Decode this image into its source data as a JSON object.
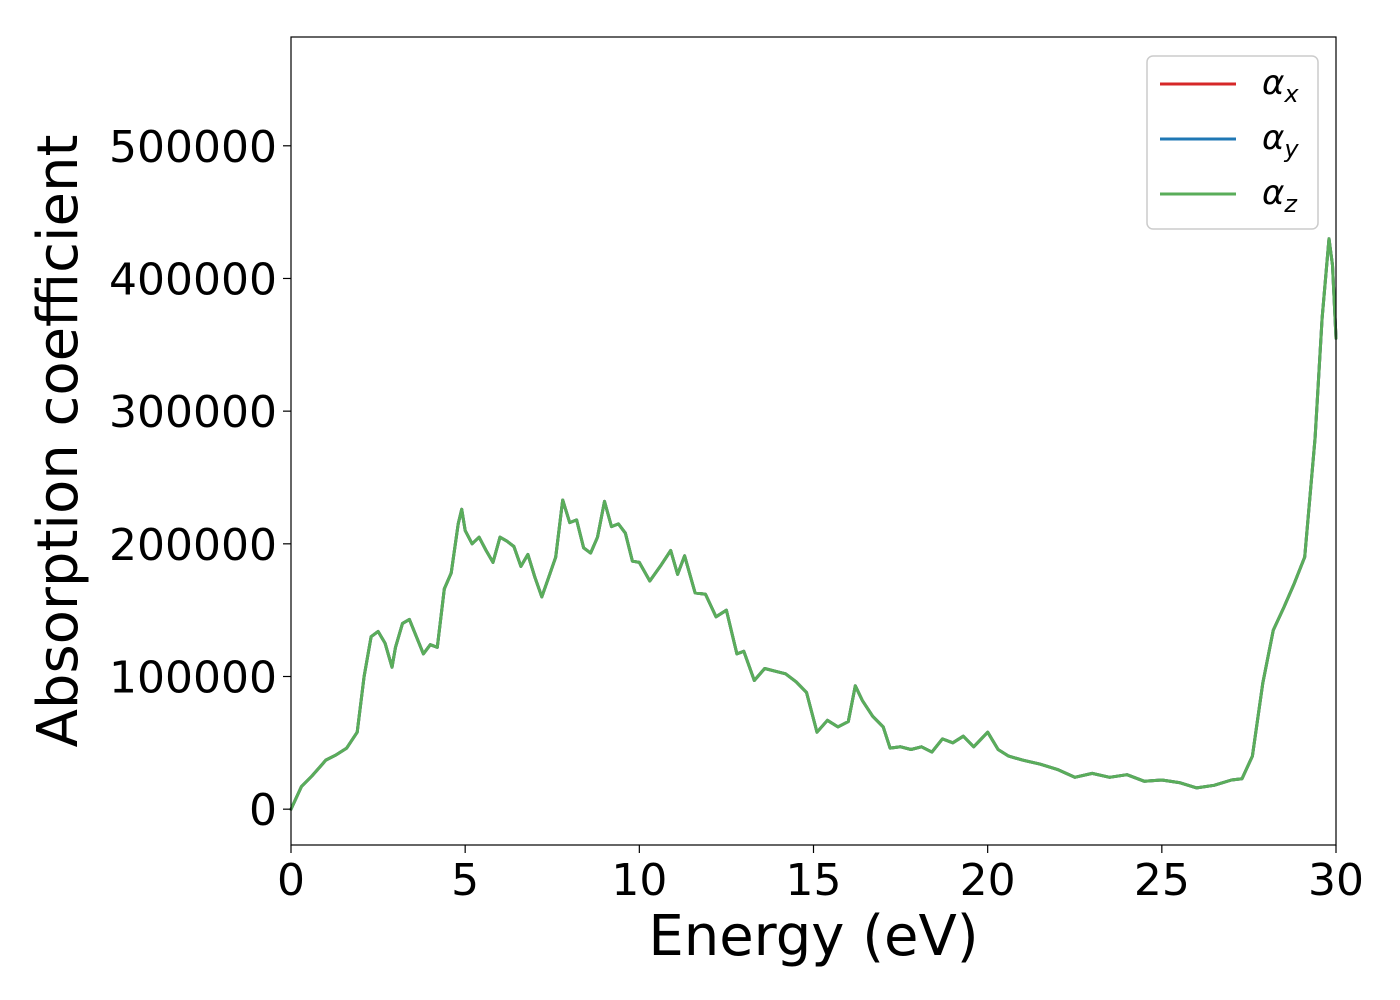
{
  "chart_data": {
    "type": "line",
    "xlabel": "Energy (eV)",
    "ylabel": "Absorption coefficient",
    "xlim": [
      0,
      30
    ],
    "ylim": [
      -27000,
      582000
    ],
    "xticks": [
      0,
      5,
      10,
      15,
      20,
      25,
      30
    ],
    "yticks": [
      0,
      100000,
      200000,
      300000,
      400000,
      500000
    ],
    "grid": false,
    "legend_position": "top-right",
    "x": [
      0,
      0.3,
      0.6,
      0.9,
      1.0,
      1.3,
      1.6,
      1.9,
      2.1,
      2.3,
      2.5,
      2.7,
      2.9,
      3.0,
      3.2,
      3.4,
      3.6,
      3.8,
      4.0,
      4.2,
      4.4,
      4.6,
      4.8,
      4.9,
      5.0,
      5.2,
      5.4,
      5.6,
      5.8,
      6.0,
      6.2,
      6.4,
      6.6,
      6.8,
      7.0,
      7.2,
      7.4,
      7.6,
      7.8,
      8.0,
      8.2,
      8.4,
      8.6,
      8.8,
      9.0,
      9.2,
      9.4,
      9.6,
      9.8,
      10.0,
      10.3,
      10.6,
      10.9,
      11.1,
      11.3,
      11.6,
      11.9,
      12.2,
      12.5,
      12.8,
      13.0,
      13.3,
      13.6,
      13.9,
      14.2,
      14.5,
      14.8,
      15.1,
      15.4,
      15.7,
      16.0,
      16.2,
      16.4,
      16.7,
      17.0,
      17.2,
      17.5,
      17.8,
      18.1,
      18.4,
      18.7,
      19.0,
      19.3,
      19.6,
      20.0,
      20.3,
      20.6,
      21.0,
      21.5,
      22.0,
      22.5,
      23.0,
      23.5,
      24.0,
      24.5,
      25.0,
      25.5,
      26.0,
      26.5,
      27.0,
      27.3,
      27.6,
      27.9,
      28.2,
      28.5,
      28.8,
      29.1,
      29.4,
      29.6,
      29.8,
      29.9,
      30.0
    ],
    "series": [
      {
        "name": "α",
        "subscript": "x",
        "color": "#d62728",
        "values": [
          0,
          17000,
          25000,
          34000,
          37000,
          41000,
          46000,
          58000,
          100000,
          130000,
          134000,
          125000,
          107000,
          122000,
          140000,
          143000,
          130000,
          117000,
          124000,
          122000,
          166000,
          178000,
          215000,
          226000,
          210000,
          200000,
          205000,
          195000,
          186000,
          205000,
          202000,
          198000,
          183000,
          192000,
          175000,
          160000,
          175000,
          190000,
          233000,
          216000,
          218000,
          197000,
          193000,
          205000,
          232000,
          213000,
          215000,
          208000,
          187000,
          186000,
          172000,
          183000,
          195000,
          177000,
          191000,
          163000,
          162000,
          145000,
          150000,
          117000,
          119000,
          97000,
          106000,
          104000,
          102000,
          96000,
          88000,
          58000,
          67000,
          62000,
          66000,
          93000,
          82000,
          70000,
          62000,
          46000,
          47000,
          45000,
          47000,
          43000,
          53000,
          50000,
          55000,
          47000,
          58000,
          45000,
          40000,
          37000,
          34000,
          30000,
          24000,
          27000,
          24000,
          26000,
          21000,
          22000,
          20000,
          16000,
          18000,
          22000,
          23000,
          40000,
          95000,
          135000,
          152000,
          170000,
          190000,
          280000,
          370000,
          430000,
          410000,
          355000
        ]
      },
      {
        "name": "α",
        "subscript": "y",
        "color": "#1f77b4",
        "values": [
          0,
          17000,
          25000,
          34000,
          37000,
          41000,
          46000,
          58000,
          100000,
          130000,
          134000,
          125000,
          107000,
          122000,
          140000,
          143000,
          130000,
          117000,
          124000,
          122000,
          166000,
          178000,
          215000,
          226000,
          210000,
          200000,
          205000,
          195000,
          186000,
          205000,
          202000,
          198000,
          183000,
          192000,
          175000,
          160000,
          175000,
          190000,
          233000,
          216000,
          218000,
          197000,
          193000,
          205000,
          232000,
          213000,
          215000,
          208000,
          187000,
          186000,
          172000,
          183000,
          195000,
          177000,
          191000,
          163000,
          162000,
          145000,
          150000,
          117000,
          119000,
          97000,
          106000,
          104000,
          102000,
          96000,
          88000,
          58000,
          67000,
          62000,
          66000,
          93000,
          82000,
          70000,
          62000,
          46000,
          47000,
          45000,
          47000,
          43000,
          53000,
          50000,
          55000,
          47000,
          58000,
          45000,
          40000,
          37000,
          34000,
          30000,
          24000,
          27000,
          24000,
          26000,
          21000,
          22000,
          20000,
          16000,
          18000,
          22000,
          23000,
          40000,
          95000,
          135000,
          152000,
          170000,
          190000,
          280000,
          370000,
          430000,
          410000,
          355000
        ]
      },
      {
        "name": "α",
        "subscript": "z",
        "color": "#5aad5a",
        "values": [
          0,
          17000,
          25000,
          34000,
          37000,
          41000,
          46000,
          58000,
          100000,
          130000,
          134000,
          125000,
          107000,
          122000,
          140000,
          143000,
          130000,
          117000,
          124000,
          122000,
          166000,
          178000,
          215000,
          226000,
          210000,
          200000,
          205000,
          195000,
          186000,
          205000,
          202000,
          198000,
          183000,
          192000,
          175000,
          160000,
          175000,
          190000,
          233000,
          216000,
          218000,
          197000,
          193000,
          205000,
          232000,
          213000,
          215000,
          208000,
          187000,
          186000,
          172000,
          183000,
          195000,
          177000,
          191000,
          163000,
          162000,
          145000,
          150000,
          117000,
          119000,
          97000,
          106000,
          104000,
          102000,
          96000,
          88000,
          58000,
          67000,
          62000,
          66000,
          93000,
          82000,
          70000,
          62000,
          46000,
          47000,
          45000,
          47000,
          43000,
          53000,
          50000,
          55000,
          47000,
          58000,
          45000,
          40000,
          37000,
          34000,
          30000,
          24000,
          27000,
          24000,
          26000,
          21000,
          22000,
          20000,
          16000,
          18000,
          22000,
          23000,
          40000,
          95000,
          135000,
          152000,
          170000,
          190000,
          280000,
          370000,
          430000,
          410000,
          355000
        ]
      }
    ]
  }
}
